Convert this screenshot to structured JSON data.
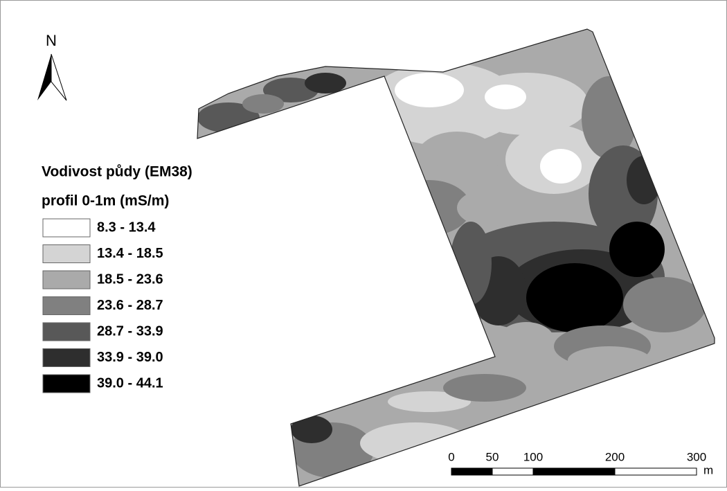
{
  "north_arrow": {
    "label": "N"
  },
  "legend": {
    "title": [
      "Vodivost půdy (EM38)",
      "profil 0-1m (mS/m)"
    ],
    "classes": [
      {
        "label": "8.3 - 13.4",
        "color": "#ffffff"
      },
      {
        "label": "13.4 - 18.5",
        "color": "#d4d4d4"
      },
      {
        "label": "18.5 - 23.6",
        "color": "#aaaaaa"
      },
      {
        "label": "23.6 - 28.7",
        "color": "#808080"
      },
      {
        "label": "28.7 - 33.9",
        "color": "#585858"
      },
      {
        "label": "33.9 - 39.0",
        "color": "#2e2e2e"
      },
      {
        "label": "39.0 - 44.1",
        "color": "#000000"
      }
    ]
  },
  "scale_bar": {
    "ticks": [
      0,
      50,
      100,
      200,
      300
    ],
    "unit": "m"
  }
}
